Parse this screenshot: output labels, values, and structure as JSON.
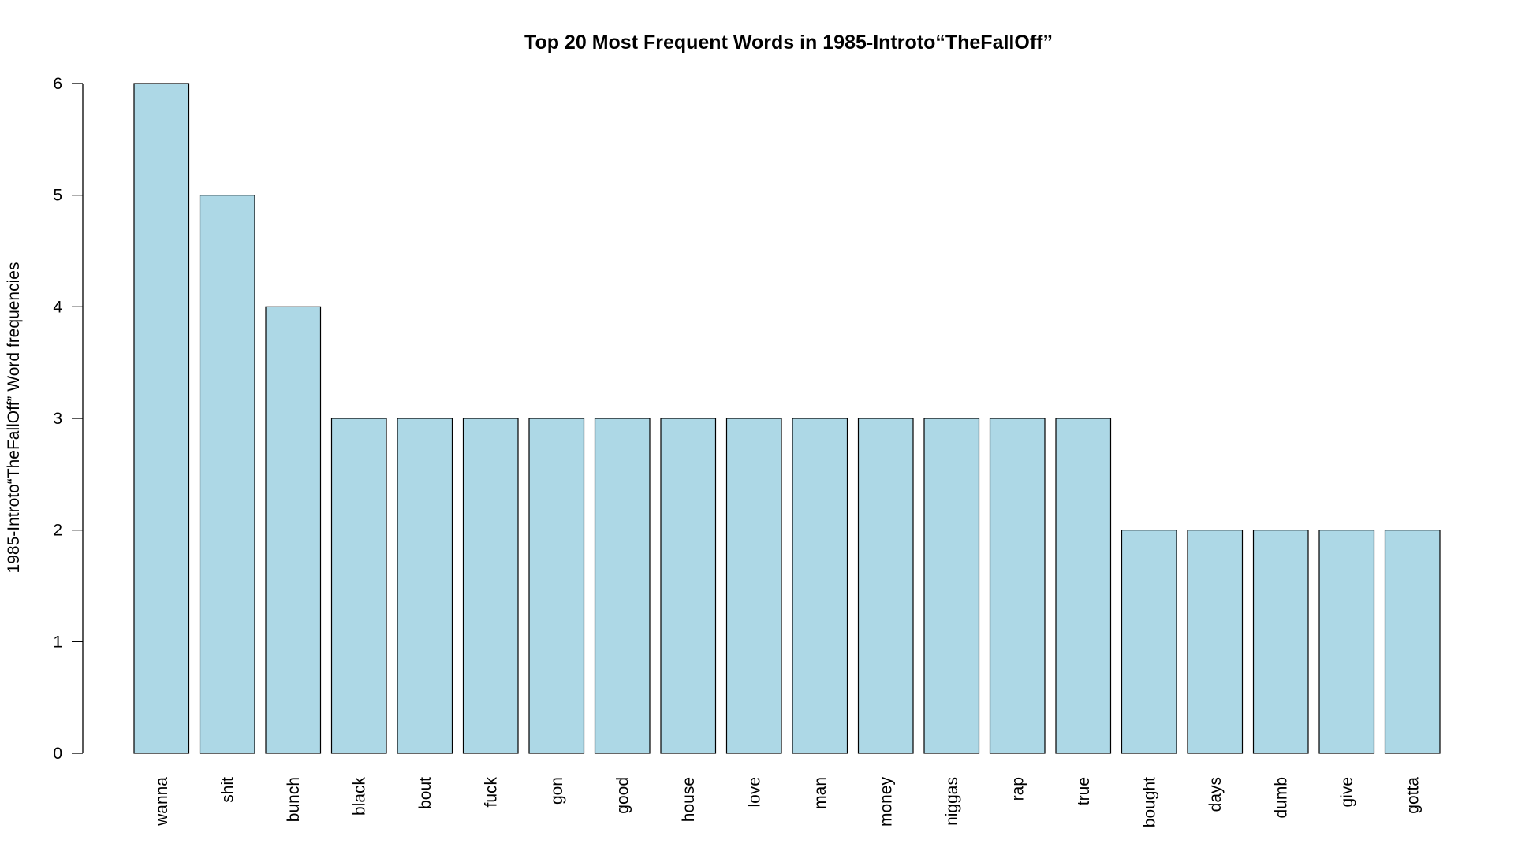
{
  "chart_data": {
    "type": "bar",
    "title": "Top 20 Most Frequent Words in 1985-Introto“TheFallOff”",
    "xlabel": "",
    "ylabel": "1985-Introto“TheFallOff” Word frequencies",
    "categories": [
      "wanna",
      "shit",
      "bunch",
      "black",
      "bout",
      "fuck",
      "gon",
      "good",
      "house",
      "love",
      "man",
      "money",
      "niggas",
      "rap",
      "true",
      "bought",
      "days",
      "dumb",
      "give",
      "gotta"
    ],
    "values": [
      6,
      5,
      4,
      3,
      3,
      3,
      3,
      3,
      3,
      3,
      3,
      3,
      3,
      3,
      3,
      2,
      2,
      2,
      2,
      2
    ],
    "ylim": [
      0,
      6
    ],
    "yticks": [
      0,
      1,
      2,
      3,
      4,
      5,
      6
    ],
    "grid": false,
    "bar_color": "#ADD8E6",
    "x_tick_rotation": "vertical"
  }
}
